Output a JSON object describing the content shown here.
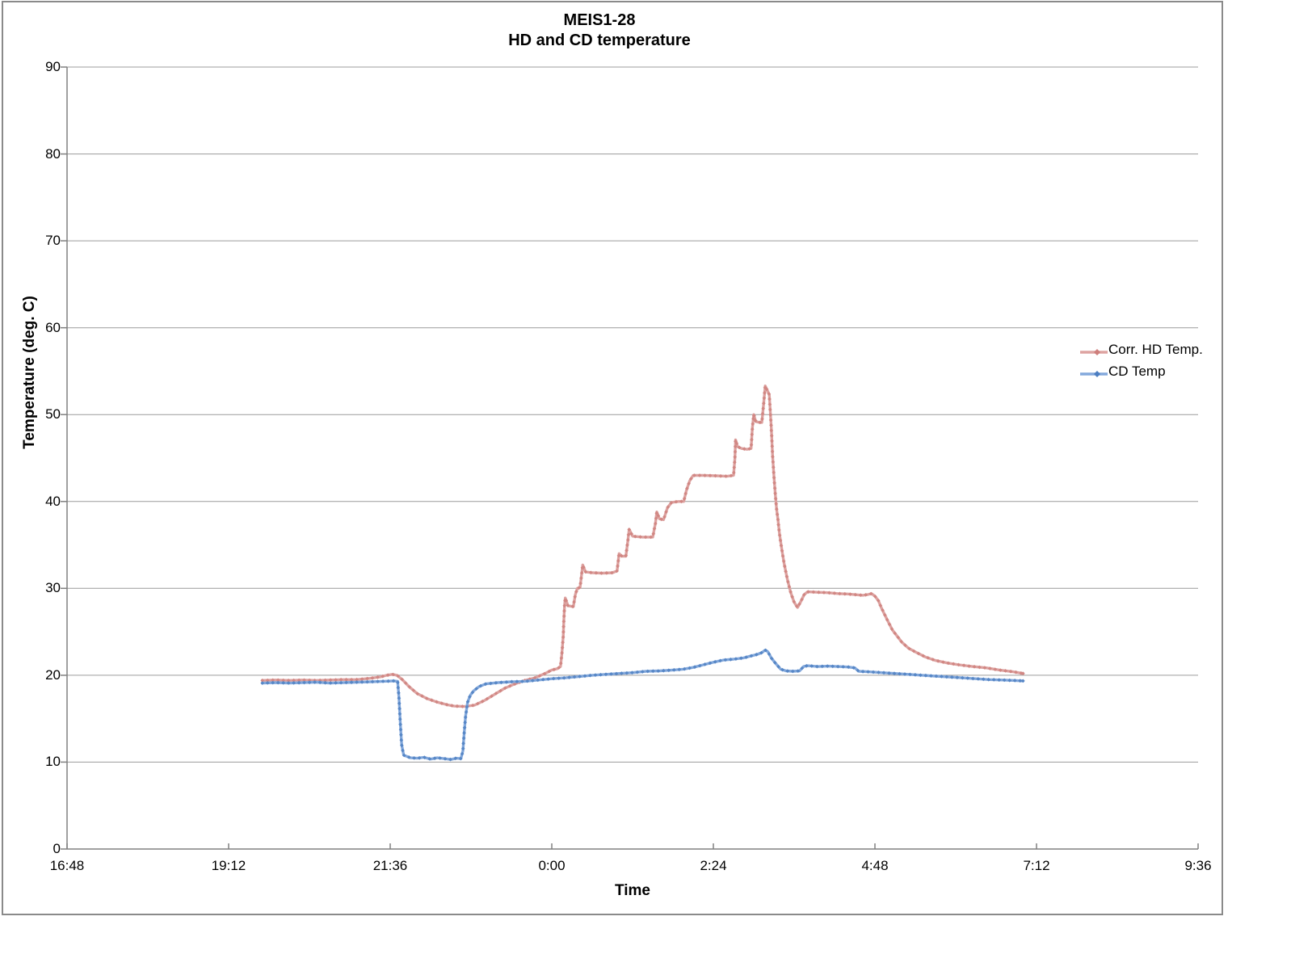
{
  "colors": {
    "background": "#ffffff",
    "frame_border": "#8a8a8a",
    "gridline": "#9c9c9c",
    "axis": "#808080",
    "text": "#000000"
  },
  "chart_data": {
    "type": "line",
    "title_line1": "MEIS1-28",
    "title_line2": "HD and CD temperature",
    "xlabel": "Time",
    "ylabel": "Temperature (deg. C)",
    "grid": "horizontal-only",
    "legend_position": "right",
    "x_axis": {
      "unit": "time of day (hours, 16:48 evening through 9:36 next morning)",
      "range_hours": [
        16.8,
        33.6
      ],
      "ticks": [
        {
          "value": 16.8,
          "label": "16:48"
        },
        {
          "value": 19.2,
          "label": "19:12"
        },
        {
          "value": 21.6,
          "label": "21:36"
        },
        {
          "value": 24.0,
          "label": "0:00"
        },
        {
          "value": 26.4,
          "label": "2:24"
        },
        {
          "value": 28.8,
          "label": "4:48"
        },
        {
          "value": 31.2,
          "label": "7:12"
        },
        {
          "value": 33.6,
          "label": "9:36"
        }
      ]
    },
    "y_axis": {
      "range": [
        0,
        90
      ],
      "ticks": [
        0,
        10,
        20,
        30,
        40,
        50,
        60,
        70,
        80,
        90
      ]
    },
    "series": [
      {
        "id": "corr-hd-temp",
        "name": "Corr. HD Temp.",
        "line_color": "#dda3a1",
        "marker_color": "#ce7f7c",
        "points": [
          [
            19.7,
            19.4
          ],
          [
            19.9,
            19.45
          ],
          [
            20.1,
            19.4
          ],
          [
            20.3,
            19.45
          ],
          [
            20.5,
            19.4
          ],
          [
            20.7,
            19.45
          ],
          [
            20.9,
            19.5
          ],
          [
            21.1,
            19.5
          ],
          [
            21.3,
            19.65
          ],
          [
            21.45,
            19.8
          ],
          [
            21.55,
            20.0
          ],
          [
            21.63,
            20.1
          ],
          [
            21.7,
            20.0
          ],
          [
            21.78,
            19.5
          ],
          [
            21.88,
            18.7
          ],
          [
            22.0,
            17.9
          ],
          [
            22.15,
            17.3
          ],
          [
            22.3,
            16.9
          ],
          [
            22.45,
            16.6
          ],
          [
            22.55,
            16.45
          ],
          [
            22.7,
            16.4
          ],
          [
            22.85,
            16.55
          ],
          [
            23.0,
            17.1
          ],
          [
            23.15,
            17.8
          ],
          [
            23.3,
            18.5
          ],
          [
            23.45,
            19.0
          ],
          [
            23.6,
            19.4
          ],
          [
            23.75,
            19.7
          ],
          [
            23.9,
            20.2
          ],
          [
            24.0,
            20.6
          ],
          [
            24.08,
            20.75
          ],
          [
            24.13,
            21.0
          ],
          [
            24.15,
            22.5
          ],
          [
            24.17,
            24.5
          ],
          [
            24.18,
            26.5
          ],
          [
            24.19,
            28.0
          ],
          [
            24.2,
            28.9
          ],
          [
            24.24,
            28.0
          ],
          [
            24.32,
            27.9
          ],
          [
            24.35,
            29.3
          ],
          [
            24.38,
            30.0
          ],
          [
            24.42,
            30.1
          ],
          [
            24.46,
            32.7
          ],
          [
            24.5,
            31.9
          ],
          [
            24.6,
            31.8
          ],
          [
            24.75,
            31.75
          ],
          [
            24.9,
            31.8
          ],
          [
            24.97,
            32.0
          ],
          [
            25.0,
            34.0
          ],
          [
            25.04,
            33.7
          ],
          [
            25.1,
            33.7
          ],
          [
            25.13,
            35.5
          ],
          [
            25.15,
            36.8
          ],
          [
            25.2,
            36.0
          ],
          [
            25.35,
            35.9
          ],
          [
            25.5,
            35.9
          ],
          [
            25.54,
            37.5
          ],
          [
            25.56,
            38.8
          ],
          [
            25.6,
            38.0
          ],
          [
            25.66,
            37.9
          ],
          [
            25.72,
            39.3
          ],
          [
            25.78,
            39.9
          ],
          [
            25.88,
            40.0
          ],
          [
            25.96,
            40.0
          ],
          [
            26.0,
            41.3
          ],
          [
            26.05,
            42.4
          ],
          [
            26.1,
            43.0
          ],
          [
            26.25,
            43.0
          ],
          [
            26.45,
            42.95
          ],
          [
            26.6,
            42.9
          ],
          [
            26.7,
            43.0
          ],
          [
            26.72,
            45.0
          ],
          [
            26.73,
            47.1
          ],
          [
            26.76,
            46.3
          ],
          [
            26.82,
            46.1
          ],
          [
            26.9,
            46.0
          ],
          [
            26.96,
            46.1
          ],
          [
            26.98,
            48.5
          ],
          [
            27.0,
            50.0
          ],
          [
            27.03,
            49.2
          ],
          [
            27.08,
            49.1
          ],
          [
            27.12,
            49.1
          ],
          [
            27.15,
            51.5
          ],
          [
            27.17,
            53.3
          ],
          [
            27.2,
            52.8
          ],
          [
            27.23,
            52.3
          ],
          [
            27.26,
            48.5
          ],
          [
            27.28,
            45.3
          ],
          [
            27.3,
            42.9
          ],
          [
            27.32,
            40.8
          ],
          [
            27.34,
            39.1
          ],
          [
            27.36,
            37.9
          ],
          [
            27.38,
            36.4
          ],
          [
            27.41,
            34.8
          ],
          [
            27.45,
            32.9
          ],
          [
            27.5,
            31.0
          ],
          [
            27.55,
            29.5
          ],
          [
            27.6,
            28.4
          ],
          [
            27.65,
            27.8
          ],
          [
            27.7,
            28.5
          ],
          [
            27.75,
            29.3
          ],
          [
            27.8,
            29.6
          ],
          [
            27.95,
            29.55
          ],
          [
            28.1,
            29.5
          ],
          [
            28.25,
            29.4
          ],
          [
            28.4,
            29.35
          ],
          [
            28.55,
            29.25
          ],
          [
            28.62,
            29.2
          ],
          [
            28.7,
            29.3
          ],
          [
            28.75,
            29.4
          ],
          [
            28.8,
            29.1
          ],
          [
            28.85,
            28.6
          ],
          [
            28.9,
            27.7
          ],
          [
            28.95,
            26.9
          ],
          [
            29.0,
            26.1
          ],
          [
            29.06,
            25.2
          ],
          [
            29.12,
            24.6
          ],
          [
            29.2,
            23.8
          ],
          [
            29.3,
            23.1
          ],
          [
            29.42,
            22.6
          ],
          [
            29.55,
            22.1
          ],
          [
            29.7,
            21.7
          ],
          [
            29.88,
            21.4
          ],
          [
            30.05,
            21.2
          ],
          [
            30.25,
            21.0
          ],
          [
            30.45,
            20.85
          ],
          [
            30.65,
            20.6
          ],
          [
            30.85,
            20.4
          ],
          [
            31.0,
            20.2
          ]
        ]
      },
      {
        "id": "cd-temp",
        "name": "CD Temp",
        "line_color": "#84a9dc",
        "marker_color": "#4c7ec1",
        "points": [
          [
            19.7,
            19.1
          ],
          [
            19.9,
            19.15
          ],
          [
            20.1,
            19.1
          ],
          [
            20.3,
            19.15
          ],
          [
            20.5,
            19.2
          ],
          [
            20.7,
            19.1
          ],
          [
            20.9,
            19.15
          ],
          [
            21.1,
            19.2
          ],
          [
            21.3,
            19.25
          ],
          [
            21.5,
            19.3
          ],
          [
            21.65,
            19.35
          ],
          [
            21.71,
            19.3
          ],
          [
            21.73,
            17.5
          ],
          [
            21.75,
            14.5
          ],
          [
            21.77,
            12.0
          ],
          [
            21.8,
            10.8
          ],
          [
            21.9,
            10.5
          ],
          [
            22.0,
            10.45
          ],
          [
            22.1,
            10.55
          ],
          [
            22.2,
            10.35
          ],
          [
            22.3,
            10.5
          ],
          [
            22.4,
            10.4
          ],
          [
            22.5,
            10.3
          ],
          [
            22.58,
            10.45
          ],
          [
            22.65,
            10.4
          ],
          [
            22.68,
            11.3
          ],
          [
            22.7,
            13.5
          ],
          [
            22.72,
            15.3
          ],
          [
            22.75,
            16.9
          ],
          [
            22.79,
            17.7
          ],
          [
            22.84,
            18.2
          ],
          [
            22.92,
            18.7
          ],
          [
            23.02,
            19.0
          ],
          [
            23.2,
            19.15
          ],
          [
            23.4,
            19.25
          ],
          [
            23.6,
            19.3
          ],
          [
            23.8,
            19.45
          ],
          [
            24.0,
            19.6
          ],
          [
            24.2,
            19.7
          ],
          [
            24.4,
            19.85
          ],
          [
            24.6,
            20.0
          ],
          [
            24.8,
            20.1
          ],
          [
            25.0,
            20.2
          ],
          [
            25.2,
            20.3
          ],
          [
            25.4,
            20.45
          ],
          [
            25.6,
            20.5
          ],
          [
            25.8,
            20.6
          ],
          [
            25.95,
            20.7
          ],
          [
            26.1,
            20.9
          ],
          [
            26.25,
            21.2
          ],
          [
            26.4,
            21.5
          ],
          [
            26.55,
            21.75
          ],
          [
            26.7,
            21.85
          ],
          [
            26.85,
            22.0
          ],
          [
            26.95,
            22.2
          ],
          [
            27.05,
            22.4
          ],
          [
            27.12,
            22.6
          ],
          [
            27.17,
            22.9
          ],
          [
            27.21,
            22.7
          ],
          [
            27.26,
            22.0
          ],
          [
            27.32,
            21.4
          ],
          [
            27.4,
            20.7
          ],
          [
            27.48,
            20.5
          ],
          [
            27.58,
            20.45
          ],
          [
            27.68,
            20.5
          ],
          [
            27.74,
            21.0
          ],
          [
            27.8,
            21.1
          ],
          [
            27.95,
            21.0
          ],
          [
            28.1,
            21.05
          ],
          [
            28.25,
            21.0
          ],
          [
            28.4,
            20.95
          ],
          [
            28.5,
            20.85
          ],
          [
            28.56,
            20.45
          ],
          [
            28.7,
            20.4
          ],
          [
            28.9,
            20.3
          ],
          [
            29.1,
            20.2
          ],
          [
            29.3,
            20.1
          ],
          [
            29.5,
            20.0
          ],
          [
            29.7,
            19.9
          ],
          [
            29.9,
            19.8
          ],
          [
            30.1,
            19.7
          ],
          [
            30.3,
            19.6
          ],
          [
            30.5,
            19.5
          ],
          [
            30.7,
            19.45
          ],
          [
            30.85,
            19.4
          ],
          [
            31.0,
            19.35
          ]
        ]
      }
    ]
  }
}
